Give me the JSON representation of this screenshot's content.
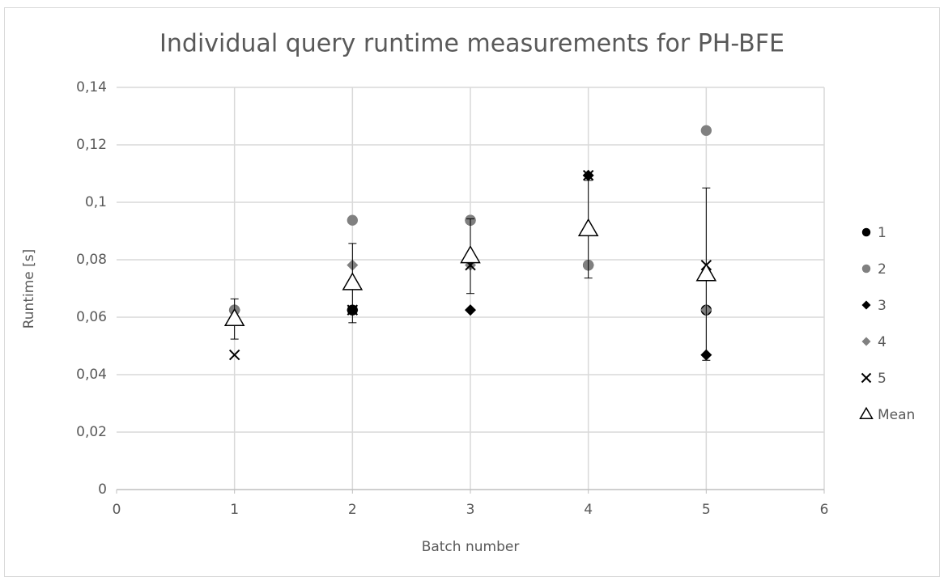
{
  "chart_data": {
    "type": "scatter",
    "title": "Individual query runtime measurements for PH-BFE",
    "x_label": "Batch number",
    "y_label": "Runtime [s]",
    "x": [
      1,
      2,
      3,
      4,
      5
    ],
    "series": [
      {
        "name": "1",
        "color": "#000000",
        "marker": "circle",
        "values": [
          0.0625,
          0.0625,
          0.09375,
          0.078125,
          0.0625
        ]
      },
      {
        "name": "2",
        "color": "#808080",
        "marker": "circle",
        "values": [
          0.0625,
          0.09375,
          0.09375,
          0.078125,
          0.125
        ]
      },
      {
        "name": "3",
        "color": "#000000",
        "marker": "diamond",
        "values": [
          0.0625,
          0.0625,
          0.0625,
          0.109375,
          0.046875
        ]
      },
      {
        "name": "4",
        "color": "#808080",
        "marker": "diamond",
        "values": [
          0.0625,
          0.078125,
          0.078125,
          0.078125,
          0.0625
        ]
      },
      {
        "name": "5",
        "color": "#000000",
        "marker": "cross",
        "values": [
          0.046875,
          0.0625,
          0.078125,
          0.109375,
          0.078125
        ]
      },
      {
        "name": "Mean",
        "color": "#000000",
        "marker": "triangle",
        "values": [
          0.059375,
          0.071875,
          0.08125,
          0.090625,
          0.075
        ],
        "errors": [
          0.007,
          0.0138,
          0.013,
          0.017,
          0.03
        ]
      }
    ],
    "xlim": [
      0,
      6
    ],
    "xticks": [
      0,
      1,
      2,
      3,
      4,
      5,
      6
    ],
    "ylim": [
      0,
      0.14
    ],
    "yticks": [
      0,
      {
        "value": 0.02,
        "label": "0,02"
      },
      {
        "value": 0.04,
        "label": "0,04"
      },
      {
        "value": 0.06,
        "label": "0,06"
      },
      {
        "value": 0.08,
        "label": "0,08"
      },
      {
        "value": 0.1,
        "label": "0,1"
      },
      {
        "value": 0.12,
        "label": "0,12"
      },
      {
        "value": 0.14,
        "label": "0,14"
      }
    ],
    "grid": true,
    "legend": "right"
  }
}
